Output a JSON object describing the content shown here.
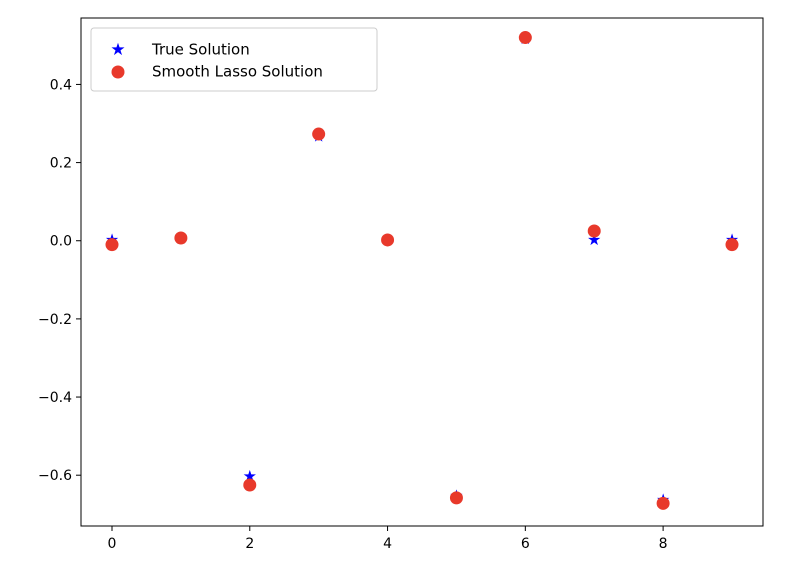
{
  "chart_data": {
    "type": "scatter",
    "title": "",
    "xlabel": "",
    "ylabel": "",
    "xlim": [
      -0.45,
      9.45
    ],
    "ylim": [
      -0.73,
      0.57
    ],
    "xticks": [
      0,
      2,
      4,
      6,
      8
    ],
    "yticks": [
      -0.6,
      -0.4,
      -0.2,
      0.0,
      0.2,
      0.4
    ],
    "xtick_labels": [
      "0",
      "2",
      "4",
      "6",
      "8"
    ],
    "ytick_labels": [
      "−0.6",
      "−0.4",
      "−0.2",
      "0.0",
      "0.2",
      "0.4"
    ],
    "grid": false,
    "legend_position": "upper-left",
    "series": [
      {
        "name": "True Solution",
        "marker": "star",
        "color": "#0000ff",
        "x": [
          0,
          1,
          2,
          3,
          4,
          5,
          6,
          7,
          8,
          9
        ],
        "y": [
          0.0,
          0.005,
          -0.605,
          0.265,
          0.0,
          -0.655,
          0.515,
          0.0,
          -0.665,
          0.0
        ]
      },
      {
        "name": "Smooth Lasso Solution",
        "marker": "circle",
        "color": "#e8392b",
        "x": [
          0,
          1,
          2,
          3,
          4,
          5,
          6,
          7,
          8,
          9
        ],
        "y": [
          -0.01,
          0.007,
          -0.625,
          0.273,
          0.002,
          -0.658,
          0.52,
          0.025,
          -0.672,
          -0.01
        ]
      }
    ]
  }
}
